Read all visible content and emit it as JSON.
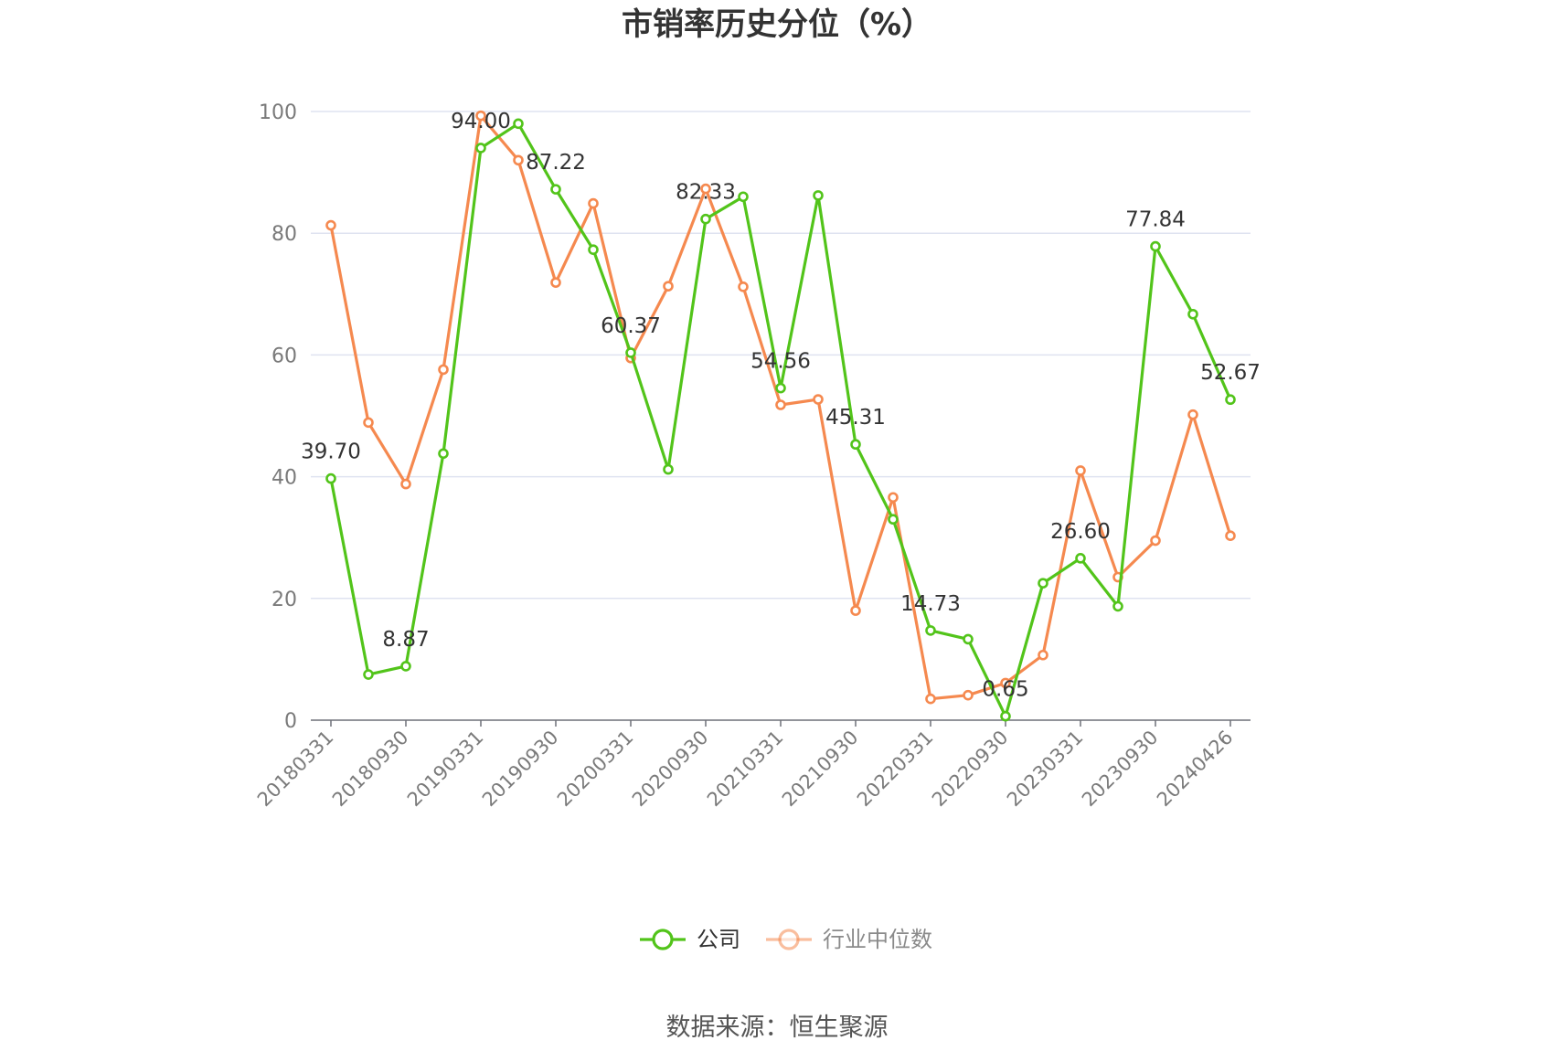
{
  "chart_data": {
    "type": "line",
    "title": "市销率历史分位（%）",
    "source": "数据来源：恒生聚源",
    "ylim": [
      0,
      100
    ],
    "yticks": [
      0,
      20,
      40,
      60,
      80,
      100
    ],
    "grid": true,
    "legend_position": "bottom",
    "x_tick_labels": [
      "20180331",
      "20180930",
      "20190331",
      "20190930",
      "20200331",
      "20200930",
      "20210331",
      "20210930",
      "20220331",
      "20220930",
      "20230331",
      "20230930",
      "20240426"
    ],
    "x_tick_indices": [
      0,
      2,
      4,
      6,
      8,
      10,
      12,
      14,
      16,
      18,
      20,
      22,
      24
    ],
    "series": [
      {
        "name": "公司",
        "color": "#52c41a",
        "values": [
          39.7,
          7.5,
          8.87,
          43.8,
          94.0,
          98.0,
          87.22,
          77.3,
          60.37,
          41.2,
          82.33,
          86.0,
          54.56,
          86.2,
          45.31,
          33.0,
          14.73,
          13.3,
          0.65,
          22.5,
          26.6,
          18.7,
          77.84,
          66.7,
          52.67
        ],
        "data_labels": [
          {
            "index": 0,
            "text": "39.70"
          },
          {
            "index": 2,
            "text": "8.87"
          },
          {
            "index": 4,
            "text": "94.00"
          },
          {
            "index": 6,
            "text": "87.22"
          },
          {
            "index": 8,
            "text": "60.37"
          },
          {
            "index": 10,
            "text": "82.33"
          },
          {
            "index": 12,
            "text": "54.56"
          },
          {
            "index": 14,
            "text": "45.31"
          },
          {
            "index": 16,
            "text": "14.73"
          },
          {
            "index": 18,
            "text": "0.65"
          },
          {
            "index": 20,
            "text": "26.60"
          },
          {
            "index": 22,
            "text": "77.84"
          },
          {
            "index": 24,
            "text": "52.67"
          }
        ]
      },
      {
        "name": "行业中位数",
        "color": "#f5894f",
        "values": [
          81.3,
          48.9,
          38.8,
          57.6,
          99.3,
          92.0,
          71.9,
          84.9,
          59.5,
          71.3,
          87.3,
          71.2,
          51.8,
          52.7,
          18.0,
          36.6,
          3.5,
          4.1,
          6.1,
          10.7,
          41.0,
          23.5,
          29.5,
          50.2,
          30.3
        ]
      }
    ]
  }
}
